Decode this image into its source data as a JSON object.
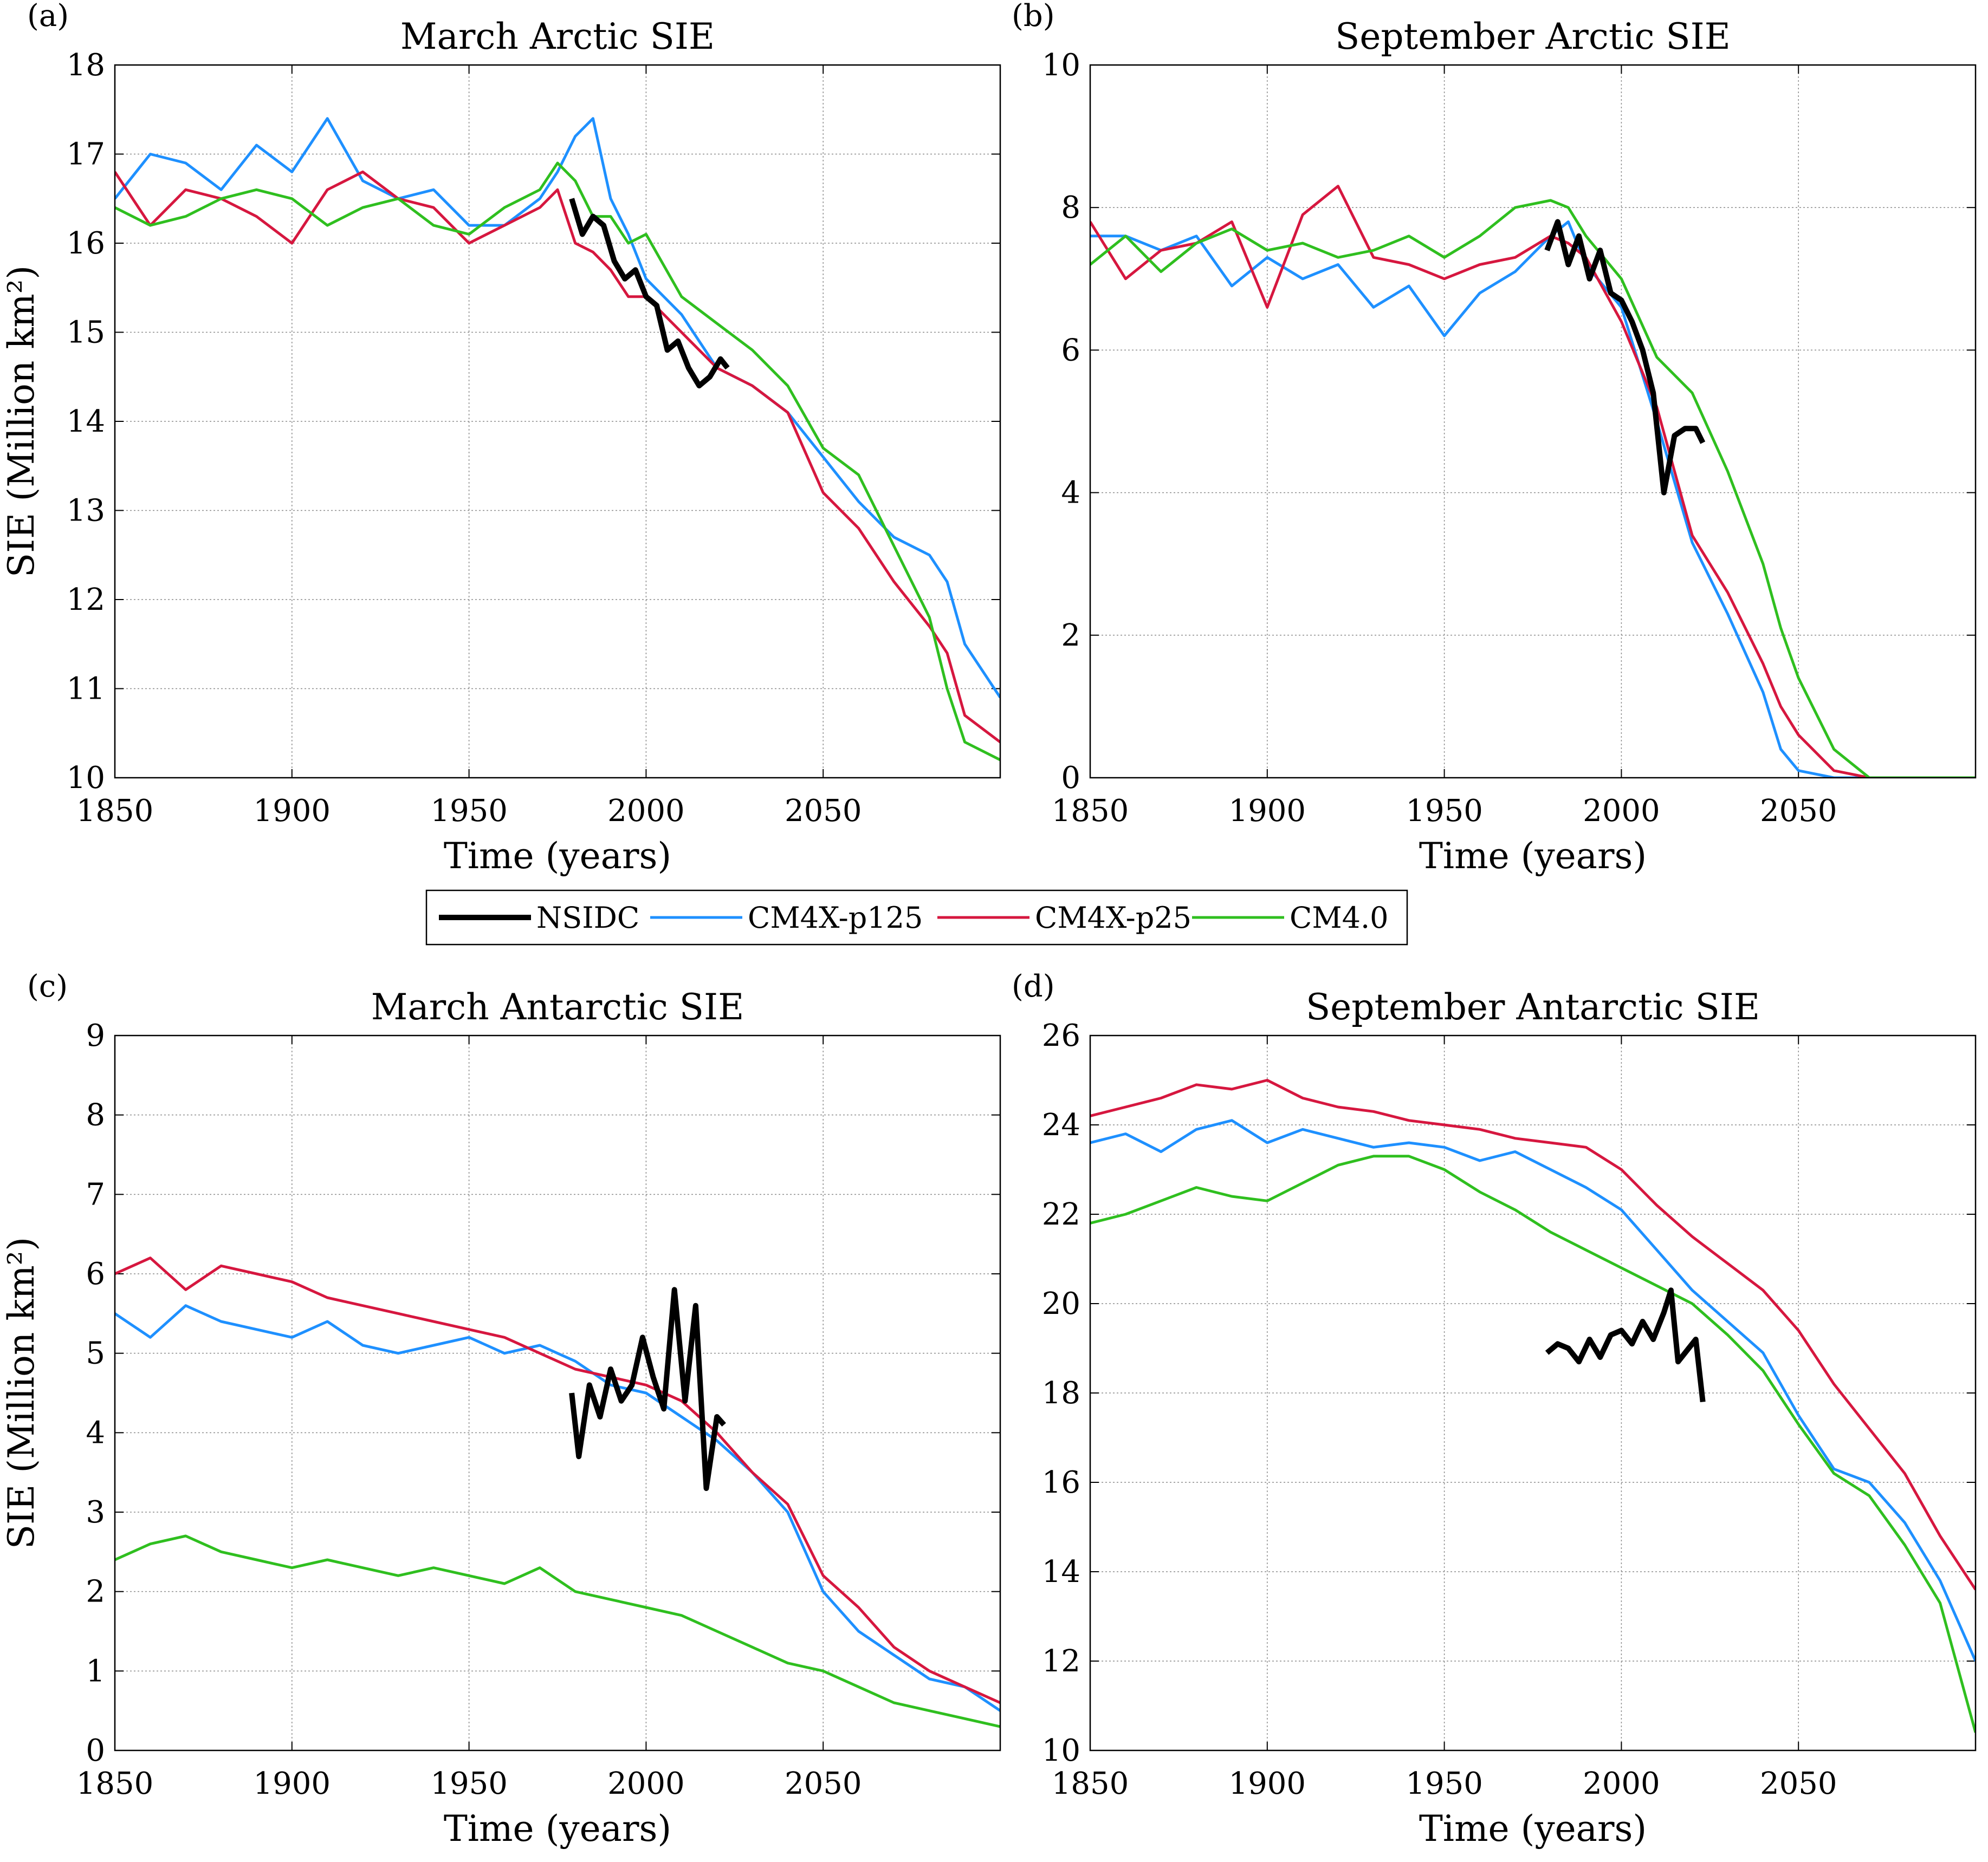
{
  "legend": {
    "entries": [
      {
        "name": "NSIDC",
        "color": "#000000",
        "width": 4
      },
      {
        "name": "CM4X-p125",
        "color": "#1e90ff",
        "width": 2
      },
      {
        "name": "CM4X-p25",
        "color": "#d6173f",
        "width": 2
      },
      {
        "name": "CM4.0",
        "color": "#2fbf1f",
        "width": 2
      }
    ]
  },
  "chart_data": [
    {
      "type": "line",
      "panel_label": "(a)",
      "title": "March Arctic SIE",
      "xlabel": "Time (years)",
      "ylabel": "SIE (Million km²)",
      "xlim": [
        1850,
        2100
      ],
      "ylim": [
        10,
        18
      ],
      "xticks": [
        1850,
        1900,
        1950,
        2000,
        2050
      ],
      "yticks": [
        10,
        11,
        12,
        13,
        14,
        15,
        16,
        17,
        18
      ],
      "grid": true,
      "series": [
        {
          "name": "NSIDC",
          "x": [
            1979,
            1982,
            1985,
            1988,
            1991,
            1994,
            1997,
            2000,
            2003,
            2006,
            2009,
            2012,
            2015,
            2018,
            2021,
            2023
          ],
          "y": [
            16.5,
            16.1,
            16.3,
            16.2,
            15.8,
            15.6,
            15.7,
            15.4,
            15.3,
            14.8,
            14.9,
            14.6,
            14.4,
            14.5,
            14.7,
            14.6
          ]
        },
        {
          "name": "CM4X-p125",
          "x": [
            1850,
            1860,
            1870,
            1880,
            1890,
            1900,
            1910,
            1920,
            1930,
            1940,
            1950,
            1960,
            1970,
            1975,
            1980,
            1985,
            1990,
            1995,
            2000,
            2010,
            2020,
            2030,
            2040,
            2050,
            2060,
            2070,
            2080,
            2085,
            2090,
            2100
          ],
          "y": [
            16.5,
            17.0,
            16.9,
            16.6,
            17.1,
            16.8,
            17.4,
            16.7,
            16.5,
            16.6,
            16.2,
            16.2,
            16.5,
            16.8,
            17.2,
            17.4,
            16.5,
            16.1,
            15.6,
            15.2,
            14.6,
            14.4,
            14.1,
            13.6,
            13.1,
            12.7,
            12.5,
            12.2,
            11.5,
            10.9
          ]
        },
        {
          "name": "CM4X-p25",
          "x": [
            1850,
            1860,
            1870,
            1880,
            1890,
            1900,
            1910,
            1920,
            1930,
            1940,
            1950,
            1960,
            1970,
            1975,
            1980,
            1985,
            1990,
            1995,
            2000,
            2010,
            2020,
            2030,
            2040,
            2050,
            2060,
            2070,
            2080,
            2085,
            2090,
            2100
          ],
          "y": [
            16.8,
            16.2,
            16.6,
            16.5,
            16.3,
            16.0,
            16.6,
            16.8,
            16.5,
            16.4,
            16.0,
            16.2,
            16.4,
            16.6,
            16.0,
            15.9,
            15.7,
            15.4,
            15.4,
            15.0,
            14.6,
            14.4,
            14.1,
            13.2,
            12.8,
            12.2,
            11.7,
            11.4,
            10.7,
            10.4
          ]
        },
        {
          "name": "CM4.0",
          "x": [
            1850,
            1860,
            1870,
            1880,
            1890,
            1900,
            1910,
            1920,
            1930,
            1940,
            1950,
            1960,
            1970,
            1975,
            1980,
            1985,
            1990,
            1995,
            2000,
            2010,
            2020,
            2030,
            2040,
            2050,
            2060,
            2070,
            2080,
            2085,
            2090,
            2100
          ],
          "y": [
            16.4,
            16.2,
            16.3,
            16.5,
            16.6,
            16.5,
            16.2,
            16.4,
            16.5,
            16.2,
            16.1,
            16.4,
            16.6,
            16.9,
            16.7,
            16.3,
            16.3,
            16.0,
            16.1,
            15.4,
            15.1,
            14.8,
            14.4,
            13.7,
            13.4,
            12.6,
            11.8,
            11.0,
            10.4,
            10.2
          ]
        }
      ]
    },
    {
      "type": "line",
      "panel_label": "(b)",
      "title": "September Arctic SIE",
      "xlabel": "Time (years)",
      "ylabel": "",
      "xlim": [
        1850,
        2100
      ],
      "ylim": [
        0,
        10
      ],
      "xticks": [
        1850,
        1900,
        1950,
        2000,
        2050
      ],
      "yticks": [
        0,
        2,
        4,
        6,
        8,
        10
      ],
      "grid": true,
      "series": [
        {
          "name": "NSIDC",
          "x": [
            1979,
            1982,
            1985,
            1988,
            1991,
            1994,
            1997,
            2000,
            2003,
            2006,
            2009,
            2012,
            2015,
            2018,
            2021,
            2023
          ],
          "y": [
            7.4,
            7.8,
            7.2,
            7.6,
            7.0,
            7.4,
            6.8,
            6.7,
            6.4,
            6.0,
            5.4,
            4.0,
            4.8,
            4.9,
            4.9,
            4.7
          ]
        },
        {
          "name": "CM4X-p125",
          "x": [
            1850,
            1860,
            1870,
            1880,
            1890,
            1900,
            1910,
            1920,
            1930,
            1940,
            1950,
            1960,
            1970,
            1980,
            1985,
            1990,
            2000,
            2010,
            2020,
            2030,
            2040,
            2045,
            2050,
            2060,
            2070,
            2080,
            2090,
            2100
          ],
          "y": [
            7.6,
            7.6,
            7.4,
            7.6,
            6.9,
            7.3,
            7.0,
            7.2,
            6.6,
            6.9,
            6.2,
            6.8,
            7.1,
            7.6,
            7.8,
            7.2,
            6.6,
            5.0,
            3.3,
            2.3,
            1.2,
            0.4,
            0.1,
            0.0,
            0.0,
            0.0,
            0.0,
            0.0
          ]
        },
        {
          "name": "CM4X-p25",
          "x": [
            1850,
            1860,
            1870,
            1880,
            1890,
            1900,
            1910,
            1920,
            1930,
            1940,
            1950,
            1960,
            1970,
            1980,
            1985,
            1990,
            2000,
            2010,
            2020,
            2030,
            2040,
            2045,
            2050,
            2060,
            2070,
            2080,
            2090,
            2100
          ],
          "y": [
            7.8,
            7.0,
            7.4,
            7.5,
            7.8,
            6.6,
            7.9,
            8.3,
            7.3,
            7.2,
            7.0,
            7.2,
            7.3,
            7.6,
            7.5,
            7.3,
            6.4,
            5.2,
            3.4,
            2.6,
            1.6,
            1.0,
            0.6,
            0.1,
            0.0,
            0.0,
            0.0,
            0.0
          ]
        },
        {
          "name": "CM4.0",
          "x": [
            1850,
            1860,
            1870,
            1880,
            1890,
            1900,
            1910,
            1920,
            1930,
            1940,
            1950,
            1960,
            1970,
            1980,
            1985,
            1990,
            2000,
            2010,
            2020,
            2030,
            2040,
            2045,
            2050,
            2060,
            2065,
            2070,
            2080,
            2090,
            2100
          ],
          "y": [
            7.2,
            7.6,
            7.1,
            7.5,
            7.7,
            7.4,
            7.5,
            7.3,
            7.4,
            7.6,
            7.3,
            7.6,
            8.0,
            8.1,
            8.0,
            7.6,
            7.0,
            5.9,
            5.4,
            4.3,
            3.0,
            2.1,
            1.4,
            0.4,
            0.2,
            0.0,
            0.0,
            0.0,
            0.0
          ]
        }
      ]
    },
    {
      "type": "line",
      "panel_label": "(c)",
      "title": "March Antarctic SIE",
      "xlabel": "Time (years)",
      "ylabel": "SIE (Million km²)",
      "xlim": [
        1850,
        2100
      ],
      "ylim": [
        0,
        9
      ],
      "xticks": [
        1850,
        1900,
        1950,
        2000,
        2050
      ],
      "yticks": [
        0,
        1,
        2,
        3,
        4,
        5,
        6,
        7,
        8,
        9
      ],
      "grid": true,
      "series": [
        {
          "name": "NSIDC",
          "x": [
            1979,
            1981,
            1984,
            1987,
            1990,
            1993,
            1996,
            1999,
            2002,
            2005,
            2008,
            2011,
            2014,
            2017,
            2020,
            2022
          ],
          "y": [
            4.5,
            3.7,
            4.6,
            4.2,
            4.8,
            4.4,
            4.6,
            5.2,
            4.7,
            4.3,
            5.8,
            4.4,
            5.6,
            3.3,
            4.2,
            4.1
          ]
        },
        {
          "name": "CM4X-p125",
          "x": [
            1850,
            1860,
            1870,
            1880,
            1890,
            1900,
            1910,
            1920,
            1930,
            1940,
            1950,
            1960,
            1970,
            1980,
            1990,
            2000,
            2010,
            2020,
            2030,
            2040,
            2050,
            2060,
            2070,
            2080,
            2090,
            2100
          ],
          "y": [
            5.5,
            5.2,
            5.6,
            5.4,
            5.3,
            5.2,
            5.4,
            5.1,
            5.0,
            5.1,
            5.2,
            5.0,
            5.1,
            4.9,
            4.6,
            4.5,
            4.2,
            3.9,
            3.5,
            3.0,
            2.0,
            1.5,
            1.2,
            0.9,
            0.8,
            0.5
          ]
        },
        {
          "name": "CM4X-p25",
          "x": [
            1850,
            1860,
            1870,
            1880,
            1890,
            1900,
            1910,
            1920,
            1930,
            1940,
            1950,
            1960,
            1970,
            1980,
            1990,
            2000,
            2010,
            2020,
            2030,
            2040,
            2050,
            2060,
            2070,
            2080,
            2090,
            2100
          ],
          "y": [
            6.0,
            6.2,
            5.8,
            6.1,
            6.0,
            5.9,
            5.7,
            5.6,
            5.5,
            5.4,
            5.3,
            5.2,
            5.0,
            4.8,
            4.7,
            4.6,
            4.4,
            4.0,
            3.5,
            3.1,
            2.2,
            1.8,
            1.3,
            1.0,
            0.8,
            0.6
          ]
        },
        {
          "name": "CM4.0",
          "x": [
            1850,
            1860,
            1870,
            1880,
            1890,
            1900,
            1910,
            1920,
            1930,
            1940,
            1950,
            1960,
            1970,
            1980,
            1990,
            2000,
            2010,
            2020,
            2030,
            2040,
            2050,
            2060,
            2070,
            2080,
            2090,
            2100
          ],
          "y": [
            2.4,
            2.6,
            2.7,
            2.5,
            2.4,
            2.3,
            2.4,
            2.3,
            2.2,
            2.3,
            2.2,
            2.1,
            2.3,
            2.0,
            1.9,
            1.8,
            1.7,
            1.5,
            1.3,
            1.1,
            1.0,
            0.8,
            0.6,
            0.5,
            0.4,
            0.3
          ]
        }
      ]
    },
    {
      "type": "line",
      "panel_label": "(d)",
      "title": "September Antarctic SIE",
      "xlabel": "Time (years)",
      "ylabel": "",
      "xlim": [
        1850,
        2100
      ],
      "ylim": [
        10,
        26
      ],
      "xticks": [
        1850,
        1900,
        1950,
        2000,
        2050
      ],
      "yticks": [
        10,
        12,
        14,
        16,
        18,
        20,
        22,
        24,
        26
      ],
      "grid": true,
      "series": [
        {
          "name": "NSIDC",
          "x": [
            1979,
            1982,
            1985,
            1988,
            1991,
            1994,
            1997,
            2000,
            2003,
            2006,
            2009,
            2012,
            2014,
            2016,
            2019,
            2021,
            2023
          ],
          "y": [
            18.9,
            19.1,
            19.0,
            18.7,
            19.2,
            18.8,
            19.3,
            19.4,
            19.1,
            19.6,
            19.2,
            19.8,
            20.3,
            18.7,
            19.0,
            19.2,
            17.8
          ]
        },
        {
          "name": "CM4X-p125",
          "x": [
            1850,
            1860,
            1870,
            1880,
            1890,
            1900,
            1910,
            1920,
            1930,
            1940,
            1950,
            1960,
            1970,
            1980,
            1990,
            2000,
            2010,
            2020,
            2030,
            2040,
            2050,
            2060,
            2070,
            2080,
            2090,
            2100
          ],
          "y": [
            23.6,
            23.8,
            23.4,
            23.9,
            24.1,
            23.6,
            23.9,
            23.7,
            23.5,
            23.6,
            23.5,
            23.2,
            23.4,
            23.0,
            22.6,
            22.1,
            21.2,
            20.3,
            19.6,
            18.9,
            17.5,
            16.3,
            16.0,
            15.1,
            13.8,
            12.0
          ]
        },
        {
          "name": "CM4X-p25",
          "x": [
            1850,
            1860,
            1870,
            1880,
            1890,
            1900,
            1910,
            1920,
            1930,
            1940,
            1950,
            1960,
            1970,
            1980,
            1990,
            2000,
            2010,
            2020,
            2030,
            2040,
            2050,
            2060,
            2070,
            2080,
            2090,
            2100
          ],
          "y": [
            24.2,
            24.4,
            24.6,
            24.9,
            24.8,
            25.0,
            24.6,
            24.4,
            24.3,
            24.1,
            24.0,
            23.9,
            23.7,
            23.6,
            23.5,
            23.0,
            22.2,
            21.5,
            20.9,
            20.3,
            19.4,
            18.2,
            17.2,
            16.2,
            14.8,
            13.6
          ]
        },
        {
          "name": "CM4.0",
          "x": [
            1850,
            1860,
            1870,
            1880,
            1890,
            1900,
            1910,
            1920,
            1930,
            1940,
            1950,
            1960,
            1970,
            1980,
            1990,
            2000,
            2010,
            2020,
            2030,
            2040,
            2050,
            2060,
            2070,
            2080,
            2090,
            2100
          ],
          "y": [
            21.8,
            22.0,
            22.3,
            22.6,
            22.4,
            22.3,
            22.7,
            23.1,
            23.3,
            23.3,
            23.0,
            22.5,
            22.1,
            21.6,
            21.2,
            20.8,
            20.4,
            20.0,
            19.3,
            18.5,
            17.3,
            16.2,
            15.7,
            14.6,
            13.3,
            10.4
          ]
        }
      ]
    }
  ]
}
